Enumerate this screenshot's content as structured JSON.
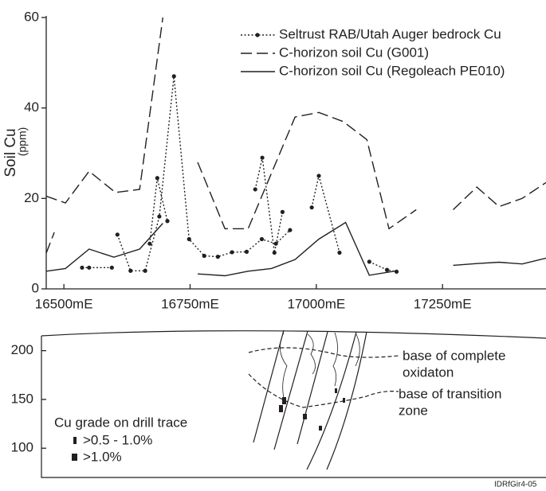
{
  "chart_data": [
    {
      "type": "line",
      "ylabel": "Soil Cu",
      "ylabel_unit": "(ppm)",
      "xlim": [
        16465,
        17455
      ],
      "ylim": [
        0,
        60
      ],
      "xticks": [
        {
          "value": 16500,
          "label": "16500mE"
        },
        {
          "value": 16750,
          "label": "16750mE"
        },
        {
          "value": 17000,
          "label": "17000mE"
        },
        {
          "value": 17250,
          "label": "17250mE"
        }
      ],
      "yticks": [
        0,
        20,
        40,
        60
      ],
      "legend": "top-right",
      "series": [
        {
          "name": "Seltrust RAB/Utah Auger bedrock Cu",
          "color": "#231f20",
          "style": "dotted",
          "markers": true,
          "x": [
            16536,
            16550,
            16595,
            null,
            16606,
            16632,
            16661,
            16689,
            16718,
            16748,
            16778,
            16805,
            16833,
            16862,
            16892,
            16920,
            16948,
            null,
            16670,
            16685,
            16705,
            null,
            16879,
            16893,
            16917,
            16933,
            null,
            16991,
            17005,
            17046,
            null,
            17105,
            17140,
            17159
          ],
          "values": [
            4.7,
            4.7,
            4.7,
            null,
            12,
            4,
            4,
            16,
            47,
            11,
            7.3,
            7.1,
            8.1,
            8.2,
            11,
            10,
            13,
            null,
            10,
            24.5,
            15,
            null,
            22,
            29,
            8,
            17,
            null,
            18,
            25,
            8,
            null,
            6,
            4.2,
            3.8
          ]
        },
        {
          "name": "C-horizon soil Cu (G001)",
          "color": "#231f20",
          "style": "dashed",
          "markers": false,
          "x": [
            16465,
            16481,
            null,
            16465,
            16503,
            16550,
            16602,
            16650,
            16696,
            null,
            16765,
            16819,
            16865,
            16958,
            17005,
            17053,
            17100,
            17144,
            17198,
            null,
            17271,
            17318,
            17362,
            17408,
            17455
          ],
          "values": [
            7.9,
            12.5,
            null,
            20.5,
            19,
            26,
            21.3,
            22,
            60,
            null,
            28,
            13.3,
            13.3,
            38,
            39,
            37,
            33,
            13.3,
            17.5,
            null,
            17.5,
            22.5,
            18.2,
            20,
            23.5
          ]
        },
        {
          "name": "C-horizon soil Cu (Regoleach PE010)",
          "color": "#231f20",
          "style": "solid",
          "markers": false,
          "x": [
            16465,
            16503,
            16550,
            16599,
            16650,
            16696,
            null,
            16765,
            16819,
            16865,
            16911,
            16958,
            17005,
            17058,
            17105,
            17159,
            null,
            17271,
            17318,
            17362,
            17408,
            17455
          ],
          "values": [
            3.9,
            4.5,
            8.8,
            7,
            8.8,
            14.5,
            null,
            3.3,
            2.9,
            3.9,
            4.5,
            6.5,
            11,
            14.7,
            3,
            4,
            null,
            5.2,
            5.6,
            5.9,
            5.5,
            6.8
          ]
        }
      ]
    },
    {
      "type": "section",
      "ylim": [
        70,
        225
      ],
      "yticks": [
        100,
        150,
        200
      ],
      "annotations": [
        [
          "base of complete",
          "oxidaton"
        ],
        [
          "base of transition",
          "zone"
        ]
      ],
      "legend_title": "Cu grade on drill trace",
      "legend_items": [
        ">0.5 - 1.0%",
        ">1.0%"
      ],
      "footer": "IDRfGir4-05"
    }
  ]
}
